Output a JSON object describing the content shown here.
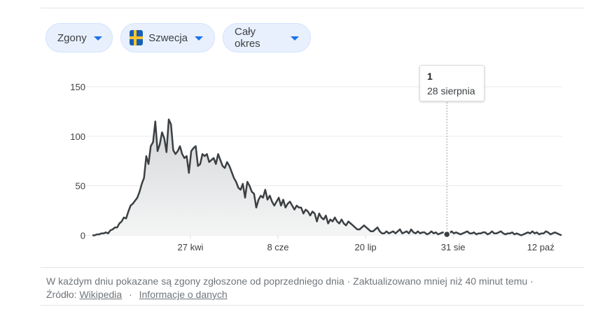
{
  "filters": [
    {
      "label": "Zgony"
    },
    {
      "label": "Szwecja",
      "icon": "sweden-flag-icon"
    },
    {
      "label": "Cały okres"
    }
  ],
  "tooltip": {
    "value": "1",
    "date": "28 sierpnia"
  },
  "footer": {
    "note": "W każdym dniu pokazane są zgony zgłoszone od poprzedniego dnia · Zaktualizowano mniej niż 40 minut temu ·",
    "source_label": "Źródło:",
    "source_link": "Wikipedia",
    "separator": "·",
    "info_link": "Informacje o danych"
  },
  "colors": {
    "line": "#3c4043",
    "area_top": "#d4d6d8",
    "area_bottom": "#f4f5f5",
    "grid": "#e8eaed",
    "accent": "#1a73e8"
  },
  "chart_data": {
    "type": "area",
    "title": "",
    "xlabel": "",
    "ylabel": "",
    "ylim": [
      0,
      150
    ],
    "yticks": [
      0,
      50,
      100,
      150
    ],
    "xticks": [
      "27 kwi",
      "8 cze",
      "20 lip",
      "31 sie",
      "12 paź"
    ],
    "grid": true,
    "highlight": {
      "x": "28 sierpnia",
      "y": 1
    },
    "x_start": "2020-03-11",
    "x_end": "2020-10-22",
    "y": [
      0,
      0,
      1,
      1,
      2,
      2,
      3,
      2,
      5,
      6,
      8,
      8,
      12,
      14,
      18,
      17,
      24,
      30,
      32,
      35,
      38,
      44,
      52,
      58,
      80,
      72,
      90,
      94,
      115,
      85,
      92,
      104,
      98,
      84,
      117,
      112,
      86,
      82,
      85,
      90,
      82,
      78,
      80,
      63,
      85,
      88,
      90,
      70,
      72,
      82,
      80,
      82,
      74,
      76,
      78,
      72,
      82,
      76,
      70,
      68,
      74,
      70,
      64,
      58,
      54,
      48,
      46,
      52,
      38,
      54,
      50,
      44,
      42,
      28,
      36,
      40,
      38,
      46,
      36,
      40,
      34,
      30,
      34,
      38,
      30,
      36,
      28,
      32,
      34,
      30,
      26,
      30,
      28,
      28,
      22,
      26,
      24,
      20,
      24,
      22,
      14,
      22,
      18,
      16,
      20,
      12,
      16,
      14,
      18,
      14,
      12,
      16,
      12,
      10,
      14,
      12,
      10,
      8,
      6,
      6,
      8,
      10,
      8,
      6,
      4,
      4,
      6,
      8,
      4,
      2,
      2,
      4,
      2,
      3,
      4,
      2,
      4,
      6,
      2,
      3,
      4,
      2,
      6,
      3,
      2,
      4,
      2,
      3,
      3,
      1,
      2,
      4,
      2,
      3,
      1,
      2,
      3,
      2,
      1,
      2,
      4,
      2,
      3,
      2,
      1,
      2,
      3,
      4,
      2,
      2,
      3,
      1,
      2,
      2,
      3,
      3,
      1,
      2,
      4,
      2,
      2,
      3,
      4,
      2,
      1,
      2,
      2,
      3,
      1,
      2,
      1,
      0,
      1,
      2,
      3,
      2,
      4,
      2,
      3,
      1,
      2,
      2,
      4,
      3,
      1,
      2,
      3,
      2,
      1,
      0
    ]
  }
}
